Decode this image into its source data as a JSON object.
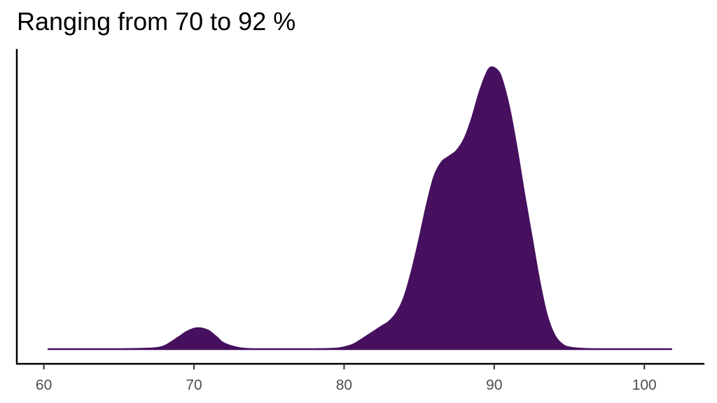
{
  "chart_data": {
    "type": "area",
    "title": "Ranging from 70 to 92 %",
    "xlabel": "",
    "ylabel": "",
    "xlim": [
      58.2,
      104
    ],
    "ylim": [
      0,
      1
    ],
    "x_ticks": [
      "60",
      "70",
      "80",
      "90",
      "100"
    ],
    "x_tick_values": [
      60,
      70,
      80,
      90,
      100
    ],
    "grid": false,
    "legend": "none",
    "fill_color": "#46105e",
    "series": [
      {
        "x": [
          60.3,
          65,
          67,
          68,
          69,
          69.5,
          70,
          70.3,
          70.6,
          71,
          71.5,
          72,
          73,
          74,
          76,
          78,
          79.5,
          80.5,
          81,
          81.5,
          82,
          82.5,
          83,
          83.5,
          84,
          84.5,
          85,
          85.5,
          86,
          86.5,
          87,
          87.5,
          88,
          88.5,
          89,
          89.5,
          89.8,
          90.2,
          90.5,
          91,
          91.5,
          92,
          92.5,
          93,
          93.5,
          94,
          94.5,
          95,
          96,
          98,
          101.8
        ],
        "y": [
          0,
          0,
          0.002,
          0.01,
          0.042,
          0.06,
          0.071,
          0.073,
          0.071,
          0.063,
          0.042,
          0.02,
          0.004,
          0,
          0,
          0,
          0.002,
          0.014,
          0.028,
          0.045,
          0.062,
          0.079,
          0.096,
          0.126,
          0.18,
          0.27,
          0.38,
          0.5,
          0.6,
          0.65,
          0.67,
          0.69,
          0.73,
          0.8,
          0.89,
          0.96,
          0.98,
          0.97,
          0.94,
          0.84,
          0.7,
          0.54,
          0.39,
          0.24,
          0.12,
          0.05,
          0.018,
          0.006,
          0.001,
          0,
          0
        ]
      }
    ]
  }
}
